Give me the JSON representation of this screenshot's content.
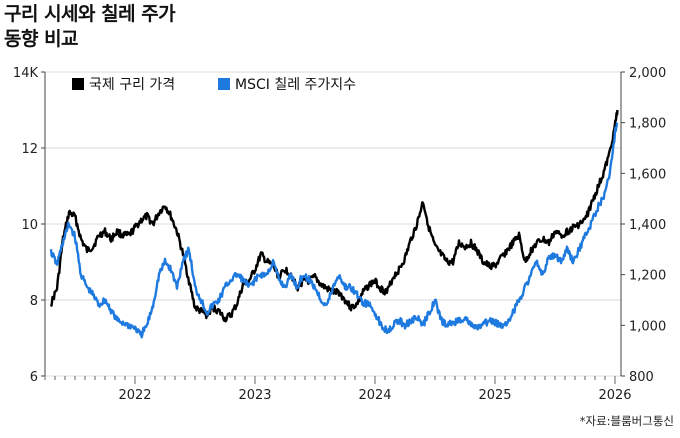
{
  "title_lines": [
    "구리 시세와 칠레 주가",
    "동향 비교"
  ],
  "source": "*자료:블룸버그통신",
  "chart_data": {
    "type": "line",
    "y_left": {
      "ticks": [
        "6",
        "8",
        "10",
        "12",
        "14K"
      ],
      "values": [
        6,
        8,
        10,
        12,
        14
      ],
      "range": [
        6,
        14
      ]
    },
    "y_right": {
      "ticks": [
        "800",
        "1,000",
        "1,200",
        "1,400",
        "1,600",
        "1,800",
        "2,000"
      ],
      "values": [
        800,
        1000,
        1200,
        1400,
        1600,
        1800,
        2000
      ],
      "range": [
        800,
        2000
      ]
    },
    "x_ticks": [
      "2022",
      "2023",
      "2024",
      "2025",
      "2026"
    ],
    "x_tick_values": [
      2022,
      2023,
      2024,
      2025,
      2026
    ],
    "x_range": [
      2021.25,
      2026.05
    ],
    "legend_position": "top-left",
    "grid": "horizontal",
    "series": [
      {
        "name": "국제 구리 가격",
        "color": "#000000",
        "axis": "left",
        "x": [
          2021.3,
          2021.35,
          2021.4,
          2021.45,
          2021.5,
          2021.55,
          2021.6,
          2021.65,
          2021.7,
          2021.75,
          2021.8,
          2021.85,
          2021.9,
          2021.95,
          2022.0,
          2022.05,
          2022.1,
          2022.15,
          2022.2,
          2022.25,
          2022.3,
          2022.35,
          2022.4,
          2022.45,
          2022.5,
          2022.55,
          2022.6,
          2022.65,
          2022.7,
          2022.75,
          2022.8,
          2022.85,
          2022.9,
          2022.95,
          2023.0,
          2023.05,
          2023.1,
          2023.15,
          2023.2,
          2023.25,
          2023.3,
          2023.35,
          2023.4,
          2023.45,
          2023.5,
          2023.55,
          2023.6,
          2023.65,
          2023.7,
          2023.75,
          2023.8,
          2023.85,
          2023.9,
          2023.95,
          2024.0,
          2024.05,
          2024.1,
          2024.15,
          2024.2,
          2024.25,
          2024.3,
          2024.35,
          2024.4,
          2024.45,
          2024.5,
          2024.55,
          2024.6,
          2024.65,
          2024.7,
          2024.75,
          2024.8,
          2024.85,
          2024.9,
          2024.95,
          2025.0,
          2025.05,
          2025.1,
          2025.15,
          2025.2,
          2025.25,
          2025.3,
          2025.35,
          2025.4,
          2025.45,
          2025.5,
          2025.55,
          2025.6,
          2025.65,
          2025.7,
          2025.75,
          2025.8,
          2025.85,
          2025.9,
          2025.95,
          2026.0,
          2026.02
        ],
        "y": [
          7.9,
          8.3,
          9.6,
          10.3,
          10.2,
          9.6,
          9.3,
          9.4,
          9.7,
          9.8,
          9.6,
          9.8,
          9.7,
          9.7,
          9.9,
          10.1,
          10.2,
          10.0,
          10.3,
          10.5,
          10.2,
          9.8,
          9.2,
          8.5,
          7.8,
          7.7,
          7.6,
          7.8,
          7.7,
          7.5,
          7.6,
          7.9,
          8.4,
          8.5,
          8.8,
          9.2,
          9.0,
          8.9,
          8.6,
          8.8,
          8.7,
          8.3,
          8.5,
          8.5,
          8.6,
          8.4,
          8.3,
          8.2,
          8.2,
          8.0,
          7.8,
          7.9,
          8.2,
          8.4,
          8.5,
          8.3,
          8.2,
          8.6,
          8.8,
          9.1,
          9.6,
          10.0,
          10.6,
          9.9,
          9.4,
          9.2,
          9.0,
          9.0,
          9.5,
          9.4,
          9.5,
          9.3,
          9.0,
          8.9,
          8.9,
          9.1,
          9.3,
          9.5,
          9.7,
          9.0,
          9.3,
          9.5,
          9.6,
          9.5,
          9.8,
          9.7,
          9.8,
          9.9,
          10.0,
          10.1,
          10.5,
          10.9,
          11.3,
          11.8,
          12.6,
          13.0
        ]
      },
      {
        "name": "MSCI 칠레 주가지수",
        "color": "#1f7ae0",
        "axis": "right",
        "x": [
          2021.3,
          2021.35,
          2021.4,
          2021.45,
          2021.5,
          2021.55,
          2021.6,
          2021.65,
          2021.7,
          2021.75,
          2021.8,
          2021.85,
          2021.9,
          2021.95,
          2022.0,
          2022.05,
          2022.1,
          2022.15,
          2022.2,
          2022.25,
          2022.3,
          2022.35,
          2022.4,
          2022.45,
          2022.5,
          2022.55,
          2022.6,
          2022.65,
          2022.7,
          2022.75,
          2022.8,
          2022.85,
          2022.9,
          2022.95,
          2023.0,
          2023.05,
          2023.1,
          2023.15,
          2023.2,
          2023.25,
          2023.3,
          2023.35,
          2023.4,
          2023.45,
          2023.5,
          2023.55,
          2023.6,
          2023.65,
          2023.7,
          2023.75,
          2023.8,
          2023.85,
          2023.9,
          2023.95,
          2024.0,
          2024.05,
          2024.1,
          2024.15,
          2024.2,
          2024.25,
          2024.3,
          2024.35,
          2024.4,
          2024.45,
          2024.5,
          2024.55,
          2024.6,
          2024.65,
          2024.7,
          2024.75,
          2024.8,
          2024.85,
          2024.9,
          2024.95,
          2025.0,
          2025.05,
          2025.1,
          2025.15,
          2025.2,
          2025.25,
          2025.3,
          2025.35,
          2025.4,
          2025.45,
          2025.5,
          2025.55,
          2025.6,
          2025.65,
          2025.7,
          2025.75,
          2025.8,
          2025.85,
          2025.9,
          2025.95,
          2026.0,
          2026.02
        ],
        "y": [
          1290,
          1240,
          1330,
          1400,
          1350,
          1200,
          1150,
          1120,
          1080,
          1100,
          1060,
          1020,
          1010,
          1000,
          990,
          960,
          1000,
          1080,
          1200,
          1250,
          1220,
          1150,
          1260,
          1300,
          1150,
          1100,
          1050,
          1080,
          1100,
          1150,
          1180,
          1200,
          1180,
          1150,
          1180,
          1200,
          1200,
          1250,
          1180,
          1150,
          1200,
          1150,
          1200,
          1180,
          1150,
          1100,
          1080,
          1150,
          1200,
          1150,
          1150,
          1120,
          1090,
          1080,
          1050,
          1000,
          980,
          1000,
          1020,
          1000,
          1020,
          1030,
          1000,
          1050,
          1100,
          1020,
          1000,
          1010,
          1020,
          1030,
          1000,
          990,
          1000,
          1020,
          1010,
          1000,
          1010,
          1050,
          1100,
          1150,
          1200,
          1250,
          1200,
          1270,
          1280,
          1250,
          1300,
          1250,
          1300,
          1350,
          1400,
          1460,
          1500,
          1580,
          1760,
          1800
        ]
      }
    ]
  }
}
